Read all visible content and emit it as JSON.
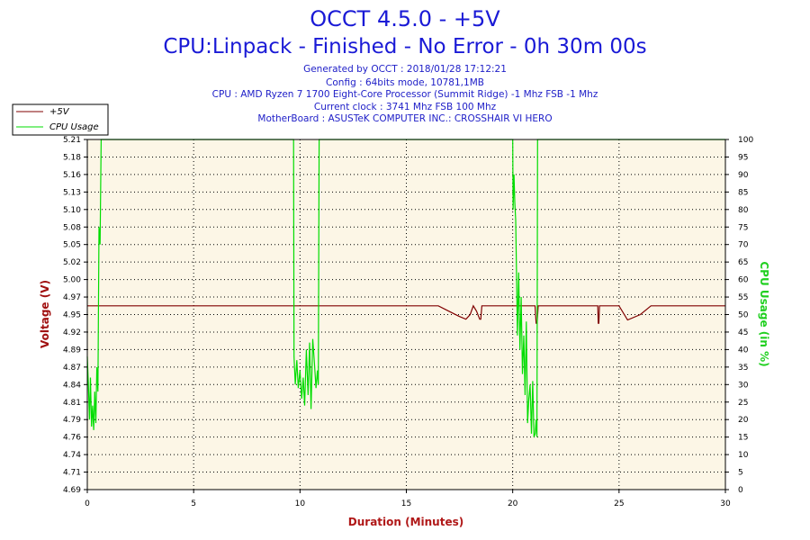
{
  "header": {
    "title": "OCCT 4.5.0 - +5V",
    "subtitle": "CPU:Linpack - Finished - No Error - 0h 30m 00s",
    "info_lines": [
      "Generated by OCCT : 2018/01/28 17:12:21",
      "Config : 64bits mode, 10781,1MB",
      "CPU : AMD Ryzen 7 1700 Eight-Core Processor (Summit Ridge) -1 Mhz FSB -1 Mhz",
      "Current clock : 3741 Mhz FSB 100 Mhz",
      "MotherBoard : ASUSTeK COMPUTER INC.: CROSSHAIR VI HERO"
    ]
  },
  "colors": {
    "voltage": "#800000",
    "cpu_usage": "#00dd00",
    "plot_background": "#fcf6e6",
    "grid": "#000000",
    "left_axis_label": "#a01010",
    "right_axis_label": "#20d020"
  },
  "chart_data": {
    "type": "line",
    "title": "OCCT 4.5.0 - +5V",
    "xlabel": "Duration (Minutes)",
    "ylabel": "Voltage (V)",
    "y2label": "CPU Usage (in %)",
    "xlim": [
      0,
      30
    ],
    "ylim": [
      4.69,
      5.21
    ],
    "y2lim": [
      0,
      100
    ],
    "x_ticks": [
      "0",
      "5",
      "10",
      "15",
      "20",
      "25",
      "30"
    ],
    "y_ticks": [
      "4.69",
      "4.71",
      "4.74",
      "4.76",
      "4.79",
      "4.81",
      "4.84",
      "4.87",
      "4.89",
      "4.92",
      "4.95",
      "4.97",
      "5.00",
      "5.02",
      "5.05",
      "5.08",
      "5.10",
      "5.13",
      "5.16",
      "5.18",
      "5.21"
    ],
    "y2_ticks": [
      "0",
      "5",
      "10",
      "15",
      "20",
      "25",
      "30",
      "35",
      "40",
      "45",
      "50",
      "55",
      "60",
      "65",
      "70",
      "75",
      "80",
      "85",
      "90",
      "95",
      "100"
    ],
    "grid": true,
    "legend": "top-left",
    "series": [
      {
        "name": "+5V",
        "axis": "left",
        "x": [
          0,
          16.5,
          17,
          17.5,
          17.8,
          18.0,
          18.15,
          18.3,
          18.45,
          18.5,
          18.55,
          18.6,
          21.05,
          21.1,
          21.15,
          21.2,
          21.25,
          24.0,
          24.02,
          24.05,
          24.08,
          24.1,
          25.0,
          25.4,
          26.0,
          26.5,
          30
        ],
        "y": [
          4.963,
          4.963,
          4.955,
          4.947,
          4.943,
          4.95,
          4.963,
          4.955,
          4.943,
          4.943,
          4.963,
          4.963,
          4.963,
          4.937,
          4.937,
          4.963,
          4.963,
          4.963,
          4.937,
          4.937,
          4.963,
          4.963,
          4.963,
          4.942,
          4.95,
          4.963,
          4.963
        ]
      },
      {
        "name": "CPU Usage",
        "axis": "right",
        "x": [
          0,
          0.05,
          0.1,
          0.15,
          0.2,
          0.25,
          0.3,
          0.35,
          0.4,
          0.45,
          0.5,
          0.55,
          0.6,
          0.65,
          0.7,
          9.7,
          9.72,
          9.78,
          9.85,
          9.92,
          10.0,
          10.08,
          10.15,
          10.22,
          10.3,
          10.38,
          10.45,
          10.52,
          10.6,
          10.68,
          10.75,
          10.82,
          10.86,
          10.9,
          20.0,
          20.02,
          20.06,
          20.1,
          20.14,
          20.18,
          20.22,
          20.28,
          20.34,
          20.4,
          20.46,
          20.52,
          20.58,
          20.64,
          20.7,
          20.76,
          20.82,
          20.88,
          20.94,
          21.0,
          21.06,
          21.1,
          21.14,
          21.17,
          30
        ],
        "y": [
          38,
          30,
          20,
          32,
          18,
          24,
          17,
          28,
          19,
          35,
          28,
          75,
          70,
          100,
          100,
          100,
          38,
          30,
          37,
          29,
          34,
          26,
          32,
          24,
          40,
          27,
          42,
          23,
          43,
          36,
          29,
          34,
          30,
          100,
          100,
          80,
          90,
          82,
          77,
          62,
          44,
          62,
          40,
          55,
          33,
          44,
          27,
          48,
          19,
          26,
          30,
          16,
          31,
          15,
          16,
          20,
          15,
          100,
          100
        ]
      }
    ]
  }
}
